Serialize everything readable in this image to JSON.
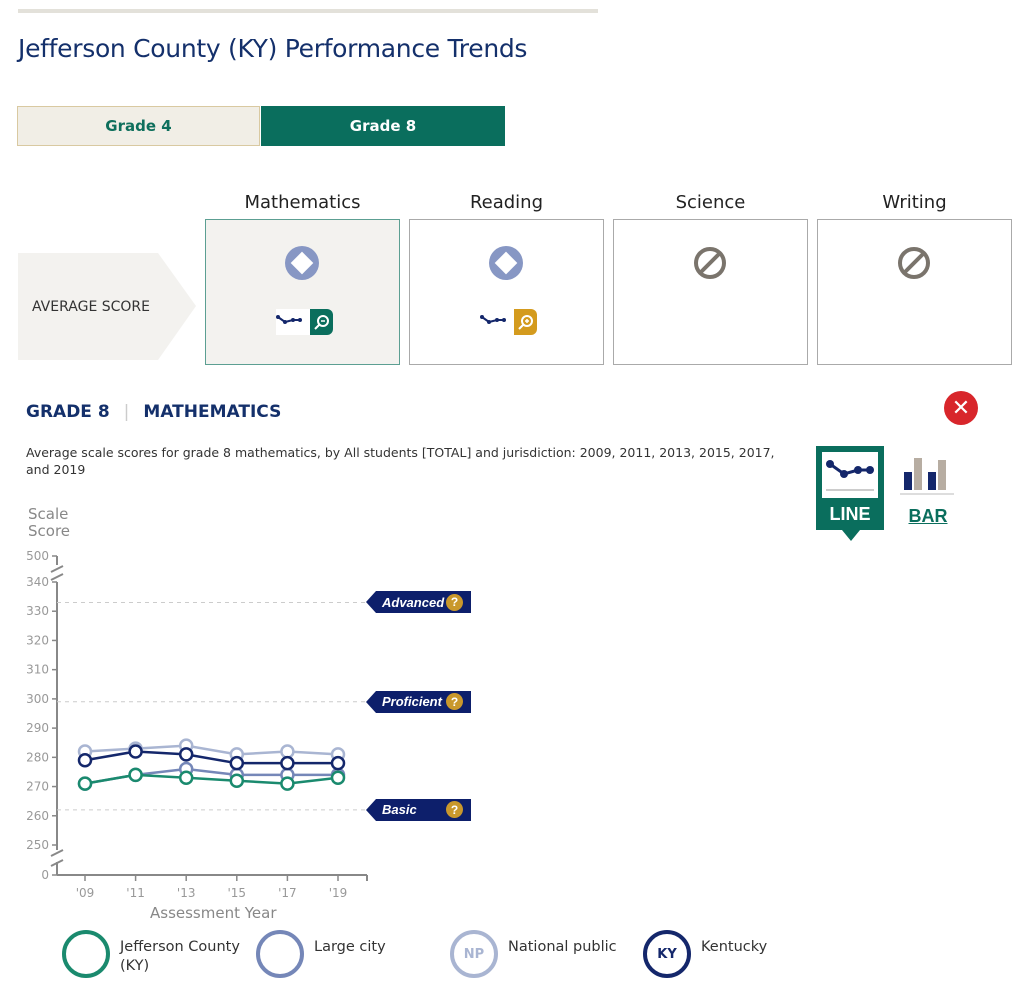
{
  "page_title": "Jefferson County (KY) Performance Trends",
  "grade_tabs": [
    {
      "label": "Grade 4",
      "selected": false
    },
    {
      "label": "Grade 8",
      "selected": true
    }
  ],
  "row_label": "AVERAGE SCORE",
  "subjects": [
    {
      "label": "Mathematics",
      "status_icon": "diamond-circle-icon",
      "has_trend": true,
      "trend_button_color": "#0a6e5d",
      "selected": true
    },
    {
      "label": "Reading",
      "status_icon": "diamond-circle-icon",
      "has_trend": true,
      "trend_button_color": "#d49b1e",
      "selected": false
    },
    {
      "label": "Science",
      "status_icon": "not-available-icon",
      "has_trend": false,
      "selected": false
    },
    {
      "label": "Writing",
      "status_icon": "not-available-icon",
      "has_trend": false,
      "selected": false
    }
  ],
  "section": {
    "grade": "GRADE 8",
    "subject": "MATHEMATICS",
    "description": "Average scale scores for grade 8 mathematics, by All students [TOTAL] and jurisdiction: 2009, 2011, 2013, 2015, 2017, and 2019"
  },
  "view_toggle": {
    "line": "LINE",
    "bar": "BAR",
    "selected": "line"
  },
  "chart_data": {
    "type": "line",
    "ylabel": "Scale Score",
    "xlabel": "Assessment Year",
    "categories": [
      "'09",
      "'11",
      "'13",
      "'15",
      "'17",
      "'19"
    ],
    "y_ticks": [
      0,
      250,
      260,
      270,
      280,
      290,
      300,
      310,
      320,
      330,
      340,
      500
    ],
    "ylim_broken": [
      250,
      340
    ],
    "axis_breaks": true,
    "grid": false,
    "achievement_levels": [
      {
        "label": "Advanced",
        "value": 333
      },
      {
        "label": "Proficient",
        "value": 299
      },
      {
        "label": "Basic",
        "value": 262
      }
    ],
    "series": [
      {
        "name": "National public",
        "abbr": "NP",
        "color": "#a9b5d2",
        "values": [
          282,
          283,
          284,
          281,
          282,
          281
        ]
      },
      {
        "name": "Large city",
        "color": "#7587b8",
        "values": [
          271,
          274,
          276,
          274,
          274,
          274
        ]
      },
      {
        "name": "Jefferson County (KY)",
        "color": "#1a8a6e",
        "values": [
          271,
          274,
          273,
          272,
          271,
          273
        ]
      },
      {
        "name": "Kentucky",
        "abbr": "KY",
        "color": "#14276b",
        "values": [
          279,
          282,
          281,
          278,
          278,
          278
        ]
      }
    ],
    "legend_position": "bottom"
  }
}
